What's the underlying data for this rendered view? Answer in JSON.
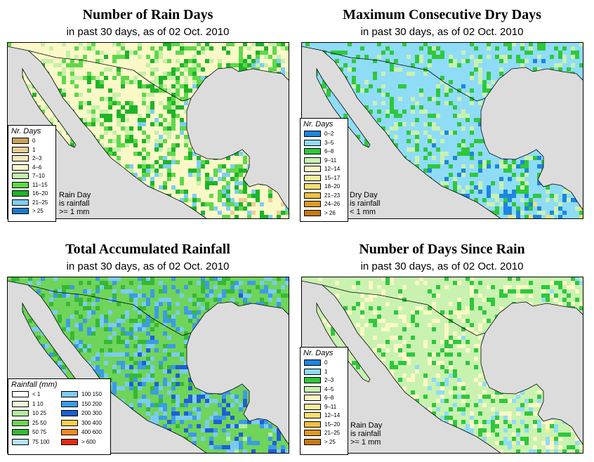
{
  "colors": {
    "ocean": "#dcdcdc",
    "land": "#f7f5c8"
  },
  "panels": [
    {
      "id": "rain-days",
      "title": "Number of Rain Days",
      "subtitle": "in past 30 days, as of  02 Oct. 2010",
      "legend": {
        "title": "Nr. Days",
        "items": [
          {
            "label": "0",
            "color": "#c8a25a"
          },
          {
            "label": "1",
            "color": "#e8cd96"
          },
          {
            "label": "2–3",
            "color": "#f5e6bc"
          },
          {
            "label": "4–6",
            "color": "#fbf8c8"
          },
          {
            "label": "7–10",
            "color": "#c6f0a8"
          },
          {
            "label": "11–15",
            "color": "#5fd84a"
          },
          {
            "label": "16–20",
            "color": "#1eb428"
          },
          {
            "label": "21–25",
            "color": "#7fcdf5"
          },
          {
            "label": "> 25",
            "color": "#1a7ccd"
          }
        ]
      },
      "note": [
        "Rain Day",
        "is rainfall",
        ">= 1 mm"
      ],
      "palette": [
        "#fbf8c8",
        "#c6f0a8",
        "#5fd84a",
        "#1eb428",
        "#7fcdf5",
        "#e8cd96"
      ]
    },
    {
      "id": "max-dry-days",
      "title": "Maximum Consecutive Dry Days",
      "subtitle": "in past 30 days, as of  02 Oct. 2010",
      "legend": {
        "title": "Nr. Days",
        "items": [
          {
            "label": "0–2",
            "color": "#1c86e0"
          },
          {
            "label": "3–5",
            "color": "#8fdcf7"
          },
          {
            "label": "6–8",
            "color": "#2ec83c"
          },
          {
            "label": "9–11",
            "color": "#c9f2b0"
          },
          {
            "label": "12–14",
            "color": "#fbf8c4"
          },
          {
            "label": "15–17",
            "color": "#f9ee9a"
          },
          {
            "label": "18–20",
            "color": "#f6e070"
          },
          {
            "label": "21–23",
            "color": "#f0c040"
          },
          {
            "label": "24–26",
            "color": "#e09a20"
          },
          {
            "label": "> 26",
            "color": "#c87a10"
          }
        ]
      },
      "note": [
        "Dry Day",
        "is rainfall",
        "< 1 mm"
      ],
      "palette": [
        "#8fdcf7",
        "#8fdcf7",
        "#2ec83c",
        "#c9f2b0",
        "#1c86e0",
        "#f6e070"
      ]
    },
    {
      "id": "total-rainfall",
      "title": "Total Accumulated Rainfall",
      "subtitle": "in past 30 days, as of  02 Oct. 2010",
      "legend": {
        "title": "Rainfall (mm)",
        "items": [
          {
            "label": "< 1",
            "color": "#ffffff"
          },
          {
            "label": "1   10",
            "color": "#e8f8d8"
          },
          {
            "label": "10   25",
            "color": "#b4eba0"
          },
          {
            "label": "25   50",
            "color": "#6fd45a"
          },
          {
            "label": "50   75",
            "color": "#35b935"
          },
          {
            "label": "75   100",
            "color": "#b8e4f8"
          },
          {
            "label": "100   150",
            "color": "#7ccbf2"
          },
          {
            "label": "150   200",
            "color": "#3b9be6"
          },
          {
            "label": "200   300",
            "color": "#1d5fd6"
          },
          {
            "label": "300   400",
            "color": "#f8d050"
          },
          {
            "label": "400   600",
            "color": "#f58a20"
          },
          {
            "label": "> 600",
            "color": "#e82a10"
          }
        ]
      },
      "note": [],
      "palette": [
        "#6fd45a",
        "#35b935",
        "#7ccbf2",
        "#3b9be6",
        "#1d5fd6",
        "#b4eba0"
      ]
    },
    {
      "id": "days-since-rain",
      "title": "Number of Days Since Rain",
      "subtitle": "in past 30 days, as of  02 Oct. 2010",
      "legend": {
        "title": "Nr. Days",
        "items": [
          {
            "label": "0",
            "color": "#1c86e0"
          },
          {
            "label": "1",
            "color": "#8fdcf7"
          },
          {
            "label": "2–3",
            "color": "#2ec83c"
          },
          {
            "label": "4–5",
            "color": "#c9f2b0"
          },
          {
            "label": "6–8",
            "color": "#fbf8c4"
          },
          {
            "label": "9–11",
            "color": "#f9ee9a"
          },
          {
            "label": "12–14",
            "color": "#f6e070"
          },
          {
            "label": "15–20",
            "color": "#f0c040"
          },
          {
            "label": "21–25",
            "color": "#e09a20"
          },
          {
            "label": "> 25",
            "color": "#c87a10"
          }
        ]
      },
      "note": [
        "Rain Day",
        "is rainfall",
        ">= 1 mm"
      ],
      "palette": [
        "#c9f2b0",
        "#c9f2b0",
        "#fbf8c4",
        "#2ec83c",
        "#8fdcf7",
        "#f9ee9a"
      ]
    }
  ]
}
